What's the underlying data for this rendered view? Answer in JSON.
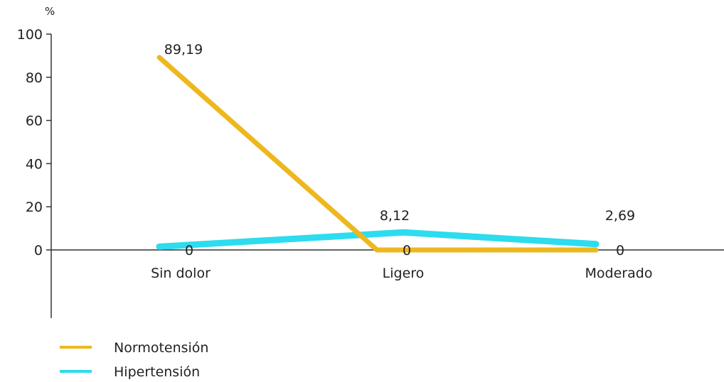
{
  "chart_data": {
    "type": "line",
    "y_unit": "%",
    "categories": [
      "Sin dolor",
      "Ligero",
      "Moderado"
    ],
    "series": [
      {
        "name": "Normotensión",
        "color": "#EDB81E",
        "values": [
          89.19,
          0,
          0
        ]
      },
      {
        "name": "Hipertensión",
        "color": "#2DDCEE",
        "values": [
          1.5,
          8.12,
          2.69
        ]
      }
    ],
    "data_labels": [
      {
        "category": 0,
        "value": 89.19,
        "text": "89,19"
      },
      {
        "category": 1,
        "value": 8.12,
        "text": "8,12"
      },
      {
        "category": 2,
        "value": 2.69,
        "text": "2,69"
      },
      {
        "category": 0,
        "value": 0,
        "text": "0"
      },
      {
        "category": 1,
        "value": 0,
        "text": "0"
      },
      {
        "category": 2,
        "value": 0,
        "text": "0"
      }
    ],
    "yticks": [
      0,
      20,
      40,
      60,
      80,
      100
    ],
    "ylim": [
      0,
      100
    ],
    "grid": false,
    "legend_position": "bottom-left"
  }
}
